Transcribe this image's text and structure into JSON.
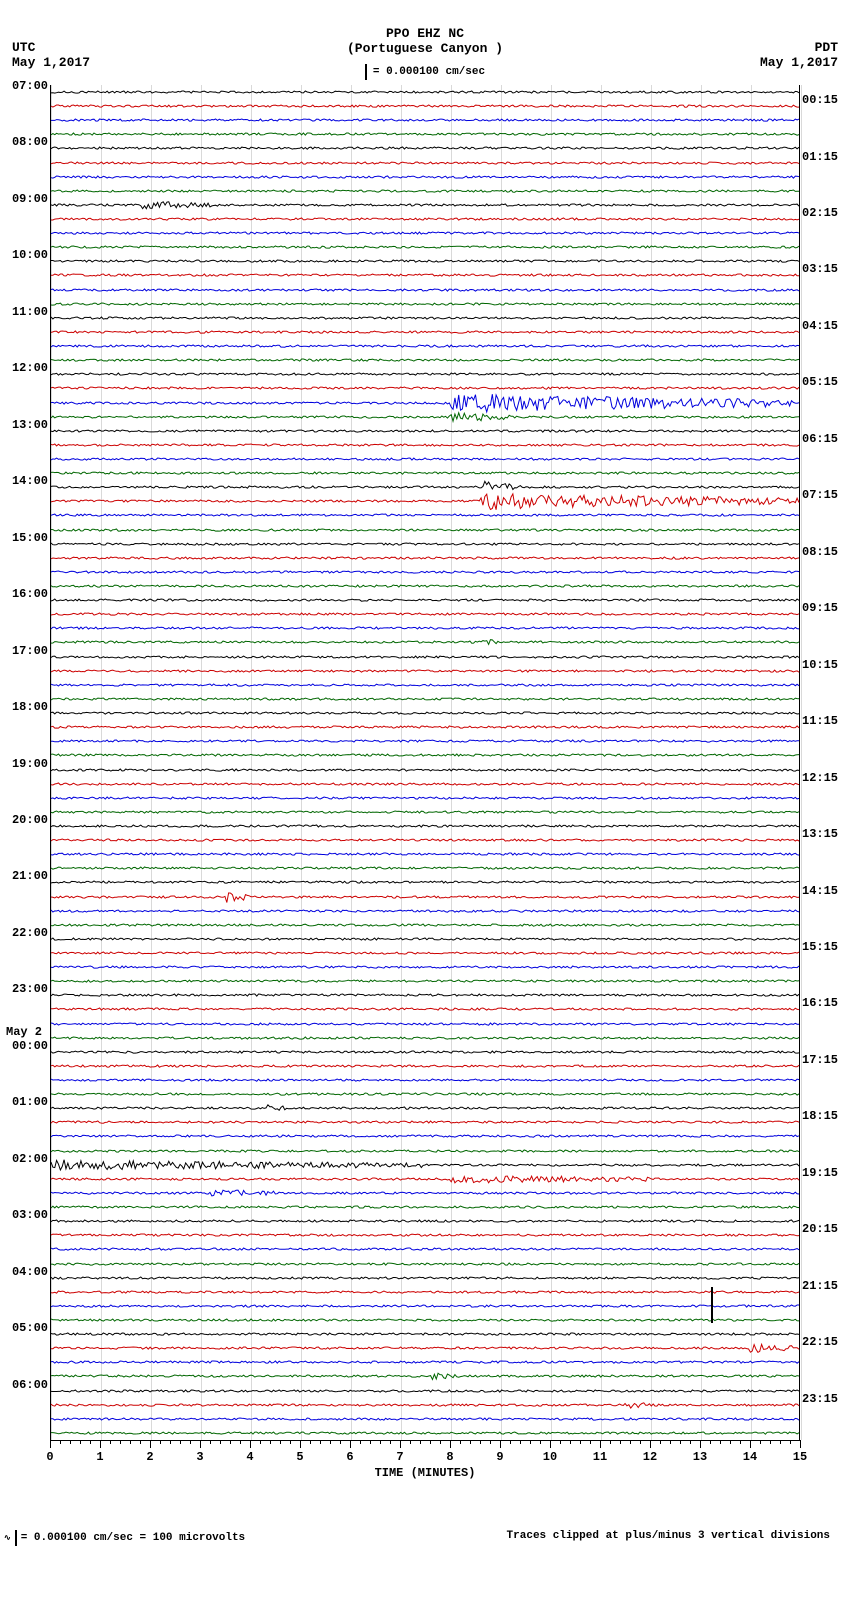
{
  "title": "PPO EHZ NC",
  "subtitle": "(Portuguese Canyon )",
  "scale_note": "= 0.000100 cm/sec",
  "tz_left_label": "UTC",
  "tz_left_date": "May 1,2017",
  "tz_right_label": "PDT",
  "tz_right_date": "May 1,2017",
  "xaxis_title": "TIME (MINUTES)",
  "footer_left": "= 0.000100 cm/sec =    100 microvolts",
  "footer_right": "Traces clipped at plus/minus 3 vertical divisions",
  "colors": {
    "background": "#ffffff",
    "text": "#000000",
    "grid": "rgba(0,0,0,0.15)",
    "trace_cycle": [
      "#000000",
      "#cc0000",
      "#0000dd",
      "#006600"
    ]
  },
  "x_ticks": [
    0,
    1,
    2,
    3,
    4,
    5,
    6,
    7,
    8,
    9,
    10,
    11,
    12,
    13,
    14,
    15
  ],
  "x_minor_per_major": 5,
  "x_range": [
    0,
    15
  ],
  "trace_amplitude_base": 2.2,
  "num_traces": 96,
  "left_labels": [
    {
      "row": 0,
      "text": "07:00"
    },
    {
      "row": 4,
      "text": "08:00"
    },
    {
      "row": 8,
      "text": "09:00"
    },
    {
      "row": 12,
      "text": "10:00"
    },
    {
      "row": 16,
      "text": "11:00"
    },
    {
      "row": 20,
      "text": "12:00"
    },
    {
      "row": 24,
      "text": "13:00"
    },
    {
      "row": 28,
      "text": "14:00"
    },
    {
      "row": 32,
      "text": "15:00"
    },
    {
      "row": 36,
      "text": "16:00"
    },
    {
      "row": 40,
      "text": "17:00"
    },
    {
      "row": 44,
      "text": "18:00"
    },
    {
      "row": 48,
      "text": "19:00"
    },
    {
      "row": 52,
      "text": "20:00"
    },
    {
      "row": 56,
      "text": "21:00"
    },
    {
      "row": 60,
      "text": "22:00"
    },
    {
      "row": 64,
      "text": "23:00"
    },
    {
      "row": 68,
      "text": "00:00"
    },
    {
      "row": 72,
      "text": "01:00"
    },
    {
      "row": 76,
      "text": "02:00"
    },
    {
      "row": 80,
      "text": "03:00"
    },
    {
      "row": 84,
      "text": "04:00"
    },
    {
      "row": 88,
      "text": "05:00"
    },
    {
      "row": 92,
      "text": "06:00"
    }
  ],
  "day_labels": [
    {
      "row": 67,
      "text": "May 2"
    }
  ],
  "right_labels": [
    {
      "row": 1,
      "text": "00:15"
    },
    {
      "row": 5,
      "text": "01:15"
    },
    {
      "row": 9,
      "text": "02:15"
    },
    {
      "row": 13,
      "text": "03:15"
    },
    {
      "row": 17,
      "text": "04:15"
    },
    {
      "row": 21,
      "text": "05:15"
    },
    {
      "row": 25,
      "text": "06:15"
    },
    {
      "row": 29,
      "text": "07:15"
    },
    {
      "row": 33,
      "text": "08:15"
    },
    {
      "row": 37,
      "text": "09:15"
    },
    {
      "row": 41,
      "text": "10:15"
    },
    {
      "row": 45,
      "text": "11:15"
    },
    {
      "row": 49,
      "text": "12:15"
    },
    {
      "row": 53,
      "text": "13:15"
    },
    {
      "row": 57,
      "text": "14:15"
    },
    {
      "row": 61,
      "text": "15:15"
    },
    {
      "row": 65,
      "text": "16:15"
    },
    {
      "row": 69,
      "text": "17:15"
    },
    {
      "row": 73,
      "text": "18:15"
    },
    {
      "row": 77,
      "text": "19:15"
    },
    {
      "row": 81,
      "text": "20:15"
    },
    {
      "row": 85,
      "text": "21:15"
    },
    {
      "row": 89,
      "text": "22:15"
    },
    {
      "row": 93,
      "text": "23:15"
    }
  ],
  "bursts": [
    {
      "row": 8,
      "start": 1.8,
      "end": 3.2,
      "amp": 7
    },
    {
      "row": 22,
      "start": 8.0,
      "end": 15.0,
      "amp": 18
    },
    {
      "row": 23,
      "start": 8.0,
      "end": 9.2,
      "amp": 10
    },
    {
      "row": 28,
      "start": 8.7,
      "end": 9.5,
      "amp": 10
    },
    {
      "row": 29,
      "start": 8.6,
      "end": 15.0,
      "amp": 16
    },
    {
      "row": 39,
      "start": 8.6,
      "end": 9.0,
      "amp": 8
    },
    {
      "row": 57,
      "start": 3.5,
      "end": 4.0,
      "amp": 10
    },
    {
      "row": 72,
      "start": 4.3,
      "end": 4.7,
      "amp": 6
    },
    {
      "row": 76,
      "start": 0.0,
      "end": 7.5,
      "amp": 9
    },
    {
      "row": 77,
      "start": 8.0,
      "end": 12.0,
      "amp": 7
    },
    {
      "row": 78,
      "start": 3.2,
      "end": 4.5,
      "amp": 6
    },
    {
      "row": 89,
      "start": 14.0,
      "end": 15.0,
      "amp": 8
    },
    {
      "row": 91,
      "start": 7.6,
      "end": 8.2,
      "amp": 7
    },
    {
      "row": 93,
      "start": 11.5,
      "end": 12.0,
      "amp": 6
    }
  ],
  "event_markers": [
    {
      "row": 86,
      "x": 13.2
    }
  ]
}
